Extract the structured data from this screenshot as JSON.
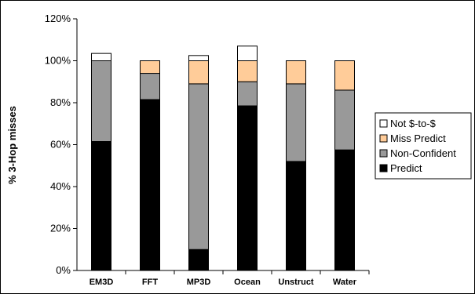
{
  "chart_data": {
    "type": "bar",
    "stacked": true,
    "categories": [
      "EM3D",
      "FFT",
      "MP3D",
      "Ocean",
      "Unstruct",
      "Water"
    ],
    "series": [
      {
        "name": "Predict",
        "values": [
          61.5,
          81.5,
          10,
          78.5,
          52,
          57.5
        ],
        "color": "#000000"
      },
      {
        "name": "Non-Confident",
        "values": [
          38.5,
          12.5,
          79,
          11.5,
          37,
          28.5
        ],
        "color": "#999999"
      },
      {
        "name": "Miss Predict",
        "values": [
          0,
          6,
          11,
          10,
          11,
          14
        ],
        "color": "#FFCC99"
      },
      {
        "name": "Not $-to-$",
        "values": [
          3.5,
          0,
          2.5,
          7,
          0,
          0
        ],
        "color": "#FFFFFF"
      }
    ],
    "ylabel": "% 3-Hop misses",
    "ylim": [
      0,
      120
    ],
    "yticks": [
      "0%",
      "20%",
      "40%",
      "60%",
      "80%",
      "100%",
      "120%"
    ],
    "ytick_values": [
      0,
      20,
      40,
      60,
      80,
      100,
      120
    ],
    "grid": false,
    "legend_position": "right"
  }
}
